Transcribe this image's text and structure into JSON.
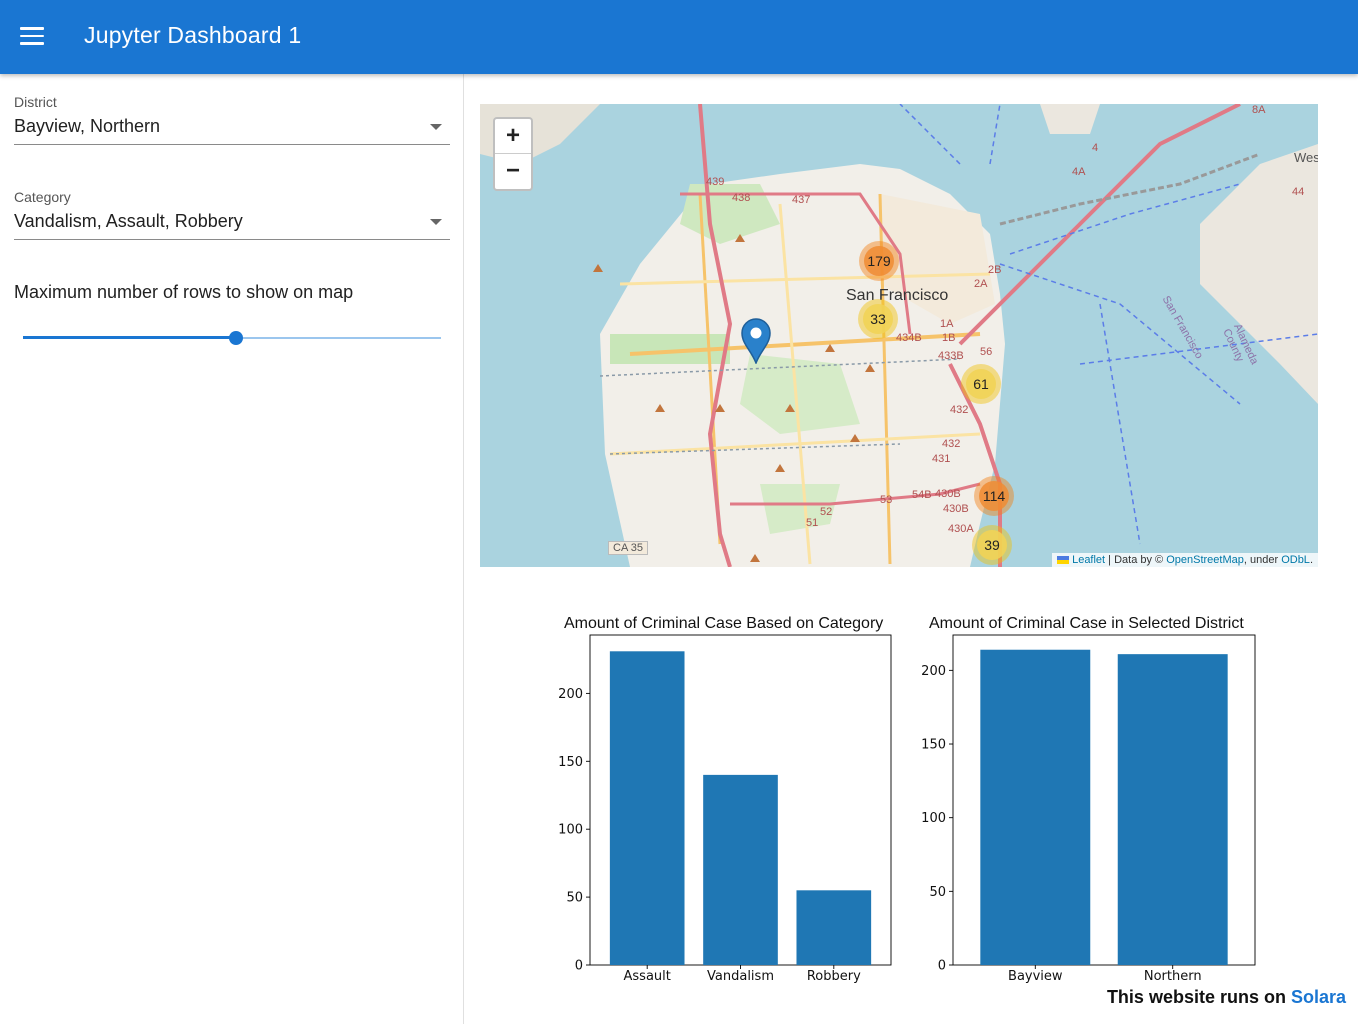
{
  "app": {
    "title": "Jupyter Dashboard 1",
    "menu_icon": "hamburger-menu-icon"
  },
  "sidebar": {
    "district": {
      "label": "District",
      "value": "Bayview, Northern"
    },
    "category": {
      "label": "Category",
      "value": "Vandalism, Assault, Robbery"
    },
    "slider": {
      "label": "Maximum number of rows to show on map",
      "value_fraction": 0.51
    }
  },
  "map": {
    "zoom_in": "+",
    "zoom_out": "−",
    "city_name": "San Francisco",
    "road_labels": [
      "439",
      "438",
      "437",
      "1A",
      "1B",
      "434B",
      "433B",
      "56",
      "432",
      "432",
      "431",
      "430B",
      "430B",
      "430A",
      "54B",
      "53",
      "52",
      "51",
      "2B",
      "2A",
      "4",
      "4A",
      "8A",
      "44",
      "CA 35",
      "Wes",
      "San Francisco",
      "Alameda County"
    ],
    "clusters": [
      {
        "count": "179",
        "level": "orange"
      },
      {
        "count": "33",
        "level": "yellow"
      },
      {
        "count": "61",
        "level": "yellow"
      },
      {
        "count": "114",
        "level": "orange"
      },
      {
        "count": "39",
        "level": "yellow"
      }
    ],
    "attribution": {
      "leaflet": "Leaflet",
      "sep": " | Data by © ",
      "osm": "OpenStreetMap",
      "under": ", under ",
      "odbl": "ODbL",
      "end": "."
    }
  },
  "chart_data": [
    {
      "type": "bar",
      "title": "Amount of Criminal Case Based on Category",
      "categories": [
        "Assault",
        "Vandalism",
        "Robbery"
      ],
      "values": [
        231,
        140,
        55
      ],
      "ylim": [
        0,
        243
      ],
      "yticks": [
        0,
        50,
        100,
        150,
        200
      ],
      "color": "#1f77b4"
    },
    {
      "type": "bar",
      "title": "Amount of Criminal Case in Selected District",
      "categories": [
        "Bayview",
        "Northern"
      ],
      "values": [
        214,
        211
      ],
      "ylim": [
        0,
        224
      ],
      "yticks": [
        0,
        50,
        100,
        150,
        200
      ],
      "color": "#1f77b4"
    }
  ],
  "footer": {
    "prefix": "This website runs on ",
    "brand": "Solara"
  }
}
